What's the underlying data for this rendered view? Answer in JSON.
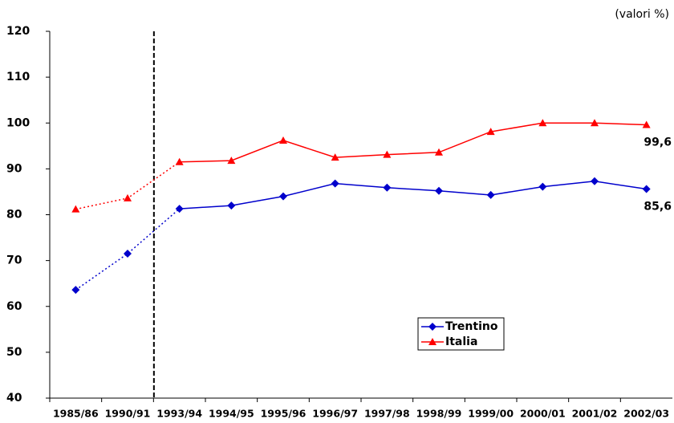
{
  "chart_data": {
    "type": "line",
    "annotation": "(valori %)",
    "categories": [
      "1985/86",
      "1990/91",
      "1993/94",
      "1994/95",
      "1995/96",
      "1996/97",
      "1997/98",
      "1998/99",
      "1999/00",
      "2000/01",
      "2001/02",
      "2002/03"
    ],
    "series": [
      {
        "name": "Trentino",
        "color": "#0000cc",
        "marker": "diamond",
        "values": [
          63.6,
          71.5,
          81.3,
          82.0,
          84.0,
          86.8,
          85.9,
          85.2,
          84.3,
          86.1,
          87.3,
          85.6
        ],
        "value_labels": [
          null,
          null,
          null,
          null,
          null,
          null,
          null,
          null,
          null,
          null,
          null,
          "85,6"
        ]
      },
      {
        "name": "Italia",
        "color": "#ff0000",
        "marker": "triangle",
        "values": [
          81.2,
          83.6,
          91.5,
          91.8,
          96.2,
          92.5,
          93.1,
          93.6,
          98.1,
          100.0,
          100.0,
          99.6
        ],
        "value_labels": [
          null,
          null,
          null,
          null,
          null,
          null,
          null,
          null,
          null,
          null,
          null,
          "99,6"
        ]
      }
    ],
    "break_index": 2,
    "ylim": [
      40,
      120
    ],
    "yticks": [
      40,
      50,
      60,
      70,
      80,
      90,
      100,
      110,
      120
    ],
    "grid": false,
    "legend": "bottom-center"
  }
}
